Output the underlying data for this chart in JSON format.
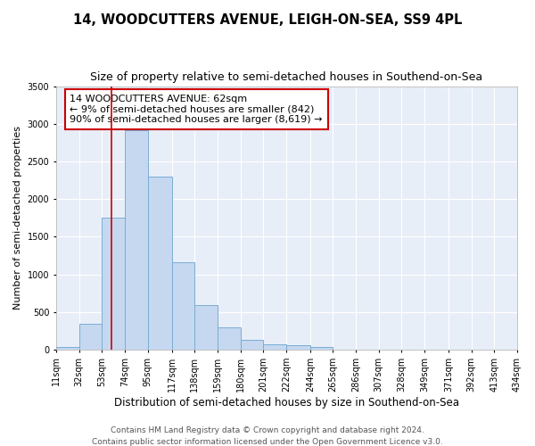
{
  "title": "14, WOODCUTTERS AVENUE, LEIGH-ON-SEA, SS9 4PL",
  "subtitle": "Size of property relative to semi-detached houses in Southend-on-Sea",
  "xlabel": "Distribution of semi-detached houses by size in Southend-on-Sea",
  "ylabel": "Number of semi-detached properties",
  "footer_line1": "Contains HM Land Registry data © Crown copyright and database right 2024.",
  "footer_line2": "Contains public sector information licensed under the Open Government Licence v3.0.",
  "bar_lefts": [
    11,
    32,
    53,
    74,
    95,
    117,
    138,
    159,
    180,
    201,
    222,
    244,
    265,
    286,
    307,
    328,
    349,
    371,
    392,
    413
  ],
  "bar_rights": [
    32,
    53,
    74,
    95,
    117,
    138,
    159,
    180,
    201,
    222,
    244,
    265,
    286,
    307,
    328,
    349,
    371,
    392,
    413,
    434
  ],
  "bar_heights": [
    30,
    340,
    1750,
    2920,
    2300,
    1160,
    590,
    300,
    130,
    70,
    60,
    30,
    0,
    0,
    0,
    0,
    0,
    0,
    0,
    0
  ],
  "bar_color": "#c5d8f0",
  "bar_edgecolor": "#7aadd4",
  "bar_linewidth": 0.7,
  "vline_x": 62,
  "vline_color": "#cc0000",
  "vline_linewidth": 1.2,
  "annotation_text": "14 WOODCUTTERS AVENUE: 62sqm\n← 9% of semi-detached houses are smaller (842)\n90% of semi-detached houses are larger (8,619) →",
  "annotation_box_edgecolor": "#cc0000",
  "annotation_box_facecolor": "#ffffff",
  "ylim": [
    0,
    3500
  ],
  "xlim": [
    11,
    434
  ],
  "tick_labels": [
    "11sqm",
    "32sqm",
    "53sqm",
    "74sqm",
    "95sqm",
    "117sqm",
    "138sqm",
    "159sqm",
    "180sqm",
    "201sqm",
    "222sqm",
    "244sqm",
    "265sqm",
    "286sqm",
    "307sqm",
    "328sqm",
    "349sqm",
    "371sqm",
    "392sqm",
    "413sqm",
    "434sqm"
  ],
  "tick_positions": [
    11,
    32,
    53,
    74,
    95,
    117,
    138,
    159,
    180,
    201,
    222,
    244,
    265,
    286,
    307,
    328,
    349,
    371,
    392,
    413,
    434
  ],
  "plot_bg_color": "#e8eef8",
  "fig_bg_color": "#ffffff",
  "grid_color": "#ffffff",
  "title_fontsize": 10.5,
  "subtitle_fontsize": 9,
  "xlabel_fontsize": 8.5,
  "ylabel_fontsize": 8,
  "tick_fontsize": 7,
  "annotation_fontsize": 8,
  "footer_fontsize": 6.5
}
